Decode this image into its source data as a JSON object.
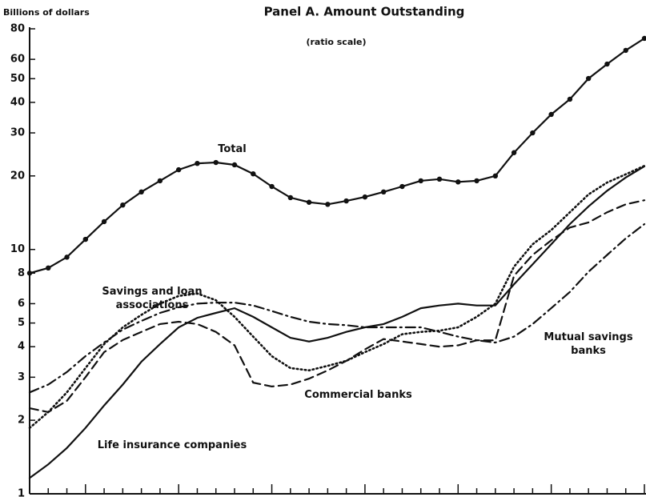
{
  "chart_data": {
    "type": "line",
    "title": "Panel A.  Amount Outstanding",
    "ylabel": "Billions of dollars",
    "annotation": "(ratio scale)",
    "log_scale": true,
    "categories": [
      null,
      null,
      null,
      null,
      null,
      null,
      null,
      null,
      null,
      null,
      null,
      null,
      null,
      null,
      null,
      null,
      null,
      null,
      null,
      null,
      null,
      null,
      null,
      null,
      null,
      null,
      null,
      null,
      null,
      null,
      null,
      null,
      null,
      null
    ],
    "ylim": [
      1,
      80
    ],
    "yticks": [
      1,
      2,
      3,
      4,
      5,
      6,
      8,
      10,
      20,
      30,
      40,
      50,
      60,
      80
    ],
    "series": [
      {
        "name": "Total",
        "color": "#111111",
        "dash": "solid",
        "marker": true,
        "values": [
          8.0,
          8.4,
          9.3,
          11.0,
          13.0,
          15.2,
          17.2,
          19.1,
          21.2,
          22.5,
          22.7,
          22.2,
          20.4,
          18.1,
          16.3,
          15.6,
          15.3,
          15.8,
          16.4,
          17.2,
          18.1,
          19.1,
          19.4,
          18.9,
          19.1,
          20.0,
          24.9,
          30.0,
          35.7,
          41.2,
          50.1,
          57.4,
          65.3,
          73.1
        ]
      },
      {
        "name": "Savings and loan associations",
        "color": "#111111",
        "dash": "dotted",
        "marker": false,
        "values": [
          1.86,
          2.16,
          2.6,
          3.27,
          4.1,
          4.8,
          5.4,
          6.0,
          6.45,
          6.6,
          6.2,
          5.3,
          4.4,
          3.66,
          3.27,
          3.2,
          3.34,
          3.5,
          3.8,
          4.1,
          4.5,
          4.6,
          4.65,
          4.8,
          5.3,
          6.0,
          8.5,
          10.5,
          12.0,
          14.2,
          16.8,
          18.8,
          20.3,
          22.0
        ]
      },
      {
        "name": "Commercial banks",
        "color": "#111111",
        "dash": "dashed",
        "marker": false,
        "values": [
          2.24,
          2.16,
          2.4,
          3.0,
          3.8,
          4.26,
          4.6,
          4.95,
          5.06,
          4.95,
          4.6,
          4.05,
          2.85,
          2.75,
          2.8,
          2.96,
          3.2,
          3.5,
          3.9,
          4.3,
          4.2,
          4.1,
          4.0,
          4.05,
          4.25,
          4.25,
          7.8,
          9.5,
          10.9,
          12.3,
          12.9,
          14.2,
          15.3,
          15.9
        ]
      },
      {
        "name": "Life insurance companies",
        "color": "#111111",
        "dash": "solid",
        "marker": false,
        "values": [
          1.16,
          1.32,
          1.54,
          1.86,
          2.3,
          2.8,
          3.47,
          4.1,
          4.8,
          5.25,
          5.5,
          5.75,
          5.3,
          4.8,
          4.35,
          4.2,
          4.35,
          4.6,
          4.8,
          4.95,
          5.3,
          5.75,
          5.9,
          6.0,
          5.9,
          5.9,
          7.2,
          8.7,
          10.5,
          12.7,
          15.0,
          17.4,
          19.7,
          21.9
        ]
      },
      {
        "name": "Mutual savings banks",
        "color": "#111111",
        "dash": "dashdot",
        "marker": false,
        "values": [
          2.6,
          2.8,
          3.15,
          3.66,
          4.16,
          4.7,
          5.1,
          5.5,
          5.8,
          6.0,
          6.06,
          6.06,
          5.9,
          5.6,
          5.3,
          5.06,
          4.95,
          4.9,
          4.8,
          4.8,
          4.8,
          4.8,
          4.6,
          4.4,
          4.25,
          4.16,
          4.4,
          4.95,
          5.75,
          6.7,
          8.1,
          9.5,
          11.1,
          12.7
        ]
      }
    ]
  }
}
